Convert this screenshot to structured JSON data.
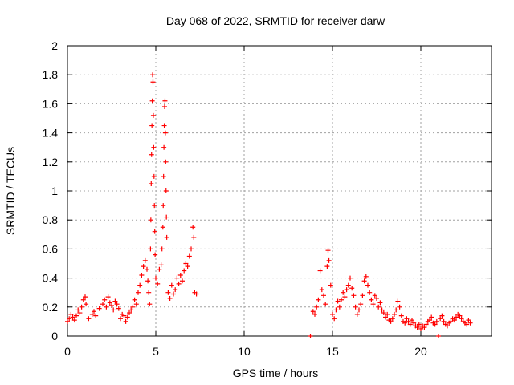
{
  "chart_data": {
    "type": "scatter",
    "title": "Day 068 of 2022, SRMTID for receiver darw",
    "xlabel": "GPS time / hours",
    "ylabel": "SRMTID / TECUs",
    "xlim": [
      0,
      24
    ],
    "ylim": [
      0,
      2
    ],
    "x_ticks": [
      "0",
      "5",
      "10",
      "15",
      "20"
    ],
    "x_tick_values": [
      0,
      5,
      10,
      15,
      20
    ],
    "y_ticks": [
      "0",
      "0.2",
      "0.4",
      "0.6",
      "0.8",
      "1",
      "1.2",
      "1.4",
      "1.6",
      "1.8",
      "2"
    ],
    "y_tick_values": [
      0,
      0.2,
      0.4,
      0.6,
      0.8,
      1.0,
      1.2,
      1.4,
      1.6,
      1.8,
      2.0
    ],
    "grid": true,
    "marker": "+",
    "color": "#ff0000",
    "series": [
      {
        "name": "SRMTID",
        "points": [
          [
            0.0,
            0.1
          ],
          [
            0.1,
            0.12
          ],
          [
            0.2,
            0.15
          ],
          [
            0.3,
            0.13
          ],
          [
            0.4,
            0.11
          ],
          [
            0.5,
            0.14
          ],
          [
            0.6,
            0.18
          ],
          [
            0.7,
            0.16
          ],
          [
            0.8,
            0.2
          ],
          [
            0.9,
            0.25
          ],
          [
            1.0,
            0.27
          ],
          [
            1.05,
            0.22
          ],
          [
            1.2,
            0.12
          ],
          [
            1.4,
            0.15
          ],
          [
            1.5,
            0.17
          ],
          [
            1.6,
            0.14
          ],
          [
            1.8,
            0.19
          ],
          [
            2.0,
            0.22
          ],
          [
            2.1,
            0.25
          ],
          [
            2.2,
            0.2
          ],
          [
            2.3,
            0.27
          ],
          [
            2.4,
            0.23
          ],
          [
            2.5,
            0.21
          ],
          [
            2.6,
            0.18
          ],
          [
            2.7,
            0.24
          ],
          [
            2.8,
            0.22
          ],
          [
            2.9,
            0.19
          ],
          [
            3.0,
            0.12
          ],
          [
            3.1,
            0.15
          ],
          [
            3.2,
            0.14
          ],
          [
            3.3,
            0.1
          ],
          [
            3.4,
            0.13
          ],
          [
            3.5,
            0.16
          ],
          [
            3.6,
            0.18
          ],
          [
            3.7,
            0.2
          ],
          [
            3.8,
            0.25
          ],
          [
            3.9,
            0.22
          ],
          [
            4.0,
            0.3
          ],
          [
            4.1,
            0.35
          ],
          [
            4.2,
            0.42
          ],
          [
            4.3,
            0.48
          ],
          [
            4.4,
            0.52
          ],
          [
            4.5,
            0.46
          ],
          [
            4.55,
            0.38
          ],
          [
            4.6,
            0.3
          ],
          [
            4.65,
            0.22
          ],
          [
            4.7,
            0.6
          ],
          [
            4.72,
            0.8
          ],
          [
            4.74,
            1.05
          ],
          [
            4.76,
            1.25
          ],
          [
            4.78,
            1.45
          ],
          [
            4.8,
            1.62
          ],
          [
            4.82,
            1.8
          ],
          [
            4.84,
            1.75
          ],
          [
            4.86,
            1.52
          ],
          [
            4.88,
            1.3
          ],
          [
            4.9,
            1.1
          ],
          [
            4.92,
            0.9
          ],
          [
            4.94,
            0.72
          ],
          [
            4.96,
            0.56
          ],
          [
            5.0,
            0.4
          ],
          [
            5.1,
            0.36
          ],
          [
            5.2,
            0.46
          ],
          [
            5.3,
            0.49
          ],
          [
            5.35,
            0.6
          ],
          [
            5.4,
            0.75
          ],
          [
            5.42,
            0.9
          ],
          [
            5.44,
            1.1
          ],
          [
            5.46,
            1.3
          ],
          [
            5.48,
            1.45
          ],
          [
            5.5,
            1.58
          ],
          [
            5.52,
            1.62
          ],
          [
            5.54,
            1.4
          ],
          [
            5.56,
            1.2
          ],
          [
            5.58,
            1.0
          ],
          [
            5.6,
            0.82
          ],
          [
            5.62,
            0.68
          ],
          [
            5.7,
            0.3
          ],
          [
            5.8,
            0.26
          ],
          [
            5.9,
            0.35
          ],
          [
            6.0,
            0.29
          ],
          [
            6.1,
            0.32
          ],
          [
            6.2,
            0.4
          ],
          [
            6.3,
            0.36
          ],
          [
            6.4,
            0.42
          ],
          [
            6.5,
            0.38
          ],
          [
            6.6,
            0.45
          ],
          [
            6.7,
            0.5
          ],
          [
            6.8,
            0.48
          ],
          [
            6.9,
            0.55
          ],
          [
            7.0,
            0.6
          ],
          [
            7.1,
            0.75
          ],
          [
            7.15,
            0.68
          ],
          [
            7.2,
            0.3
          ],
          [
            7.3,
            0.29
          ],
          [
            13.75,
            0.0
          ],
          [
            13.9,
            0.17
          ],
          [
            14.0,
            0.15
          ],
          [
            14.1,
            0.2
          ],
          [
            14.2,
            0.25
          ],
          [
            14.3,
            0.45
          ],
          [
            14.4,
            0.32
          ],
          [
            14.5,
            0.28
          ],
          [
            14.6,
            0.22
          ],
          [
            14.7,
            0.48
          ],
          [
            14.75,
            0.59
          ],
          [
            14.8,
            0.52
          ],
          [
            14.9,
            0.35
          ],
          [
            15.0,
            0.15
          ],
          [
            15.1,
            0.12
          ],
          [
            15.2,
            0.18
          ],
          [
            15.3,
            0.24
          ],
          [
            15.4,
            0.2
          ],
          [
            15.5,
            0.25
          ],
          [
            15.6,
            0.3
          ],
          [
            15.7,
            0.27
          ],
          [
            15.8,
            0.32
          ],
          [
            15.9,
            0.35
          ],
          [
            16.0,
            0.4
          ],
          [
            16.1,
            0.33
          ],
          [
            16.2,
            0.28
          ],
          [
            16.3,
            0.2
          ],
          [
            16.4,
            0.15
          ],
          [
            16.5,
            0.18
          ],
          [
            16.6,
            0.22
          ],
          [
            16.7,
            0.28
          ],
          [
            16.8,
            0.38
          ],
          [
            16.9,
            0.41
          ],
          [
            17.0,
            0.35
          ],
          [
            17.1,
            0.3
          ],
          [
            17.2,
            0.25
          ],
          [
            17.3,
            0.22
          ],
          [
            17.4,
            0.28
          ],
          [
            17.5,
            0.26
          ],
          [
            17.6,
            0.2
          ],
          [
            17.7,
            0.23
          ],
          [
            17.8,
            0.18
          ],
          [
            17.9,
            0.16
          ],
          [
            18.0,
            0.13
          ],
          [
            18.1,
            0.15
          ],
          [
            18.2,
            0.11
          ],
          [
            18.3,
            0.1
          ],
          [
            18.4,
            0.12
          ],
          [
            18.5,
            0.15
          ],
          [
            18.6,
            0.18
          ],
          [
            18.7,
            0.24
          ],
          [
            18.8,
            0.2
          ],
          [
            18.9,
            0.14
          ],
          [
            19.0,
            0.1
          ],
          [
            19.1,
            0.09
          ],
          [
            19.2,
            0.12
          ],
          [
            19.3,
            0.1
          ],
          [
            19.4,
            0.08
          ],
          [
            19.5,
            0.11
          ],
          [
            19.6,
            0.09
          ],
          [
            19.7,
            0.07
          ],
          [
            19.8,
            0.06
          ],
          [
            19.9,
            0.08
          ],
          [
            20.0,
            0.05
          ],
          [
            20.1,
            0.07
          ],
          [
            20.2,
            0.06
          ],
          [
            20.3,
            0.08
          ],
          [
            20.4,
            0.1
          ],
          [
            20.5,
            0.11
          ],
          [
            20.6,
            0.13
          ],
          [
            20.7,
            0.09
          ],
          [
            20.8,
            0.08
          ],
          [
            20.9,
            0.1
          ],
          [
            21.0,
            0.0
          ],
          [
            21.1,
            0.12
          ],
          [
            21.2,
            0.14
          ],
          [
            21.3,
            0.1
          ],
          [
            21.4,
            0.08
          ],
          [
            21.5,
            0.07
          ],
          [
            21.6,
            0.09
          ],
          [
            21.7,
            0.1
          ],
          [
            21.8,
            0.12
          ],
          [
            21.9,
            0.11
          ],
          [
            22.0,
            0.13
          ],
          [
            22.1,
            0.15
          ],
          [
            22.2,
            0.14
          ],
          [
            22.3,
            0.12
          ],
          [
            22.4,
            0.1
          ],
          [
            22.5,
            0.09
          ],
          [
            22.6,
            0.08
          ],
          [
            22.7,
            0.11
          ],
          [
            22.8,
            0.09
          ]
        ]
      }
    ]
  }
}
